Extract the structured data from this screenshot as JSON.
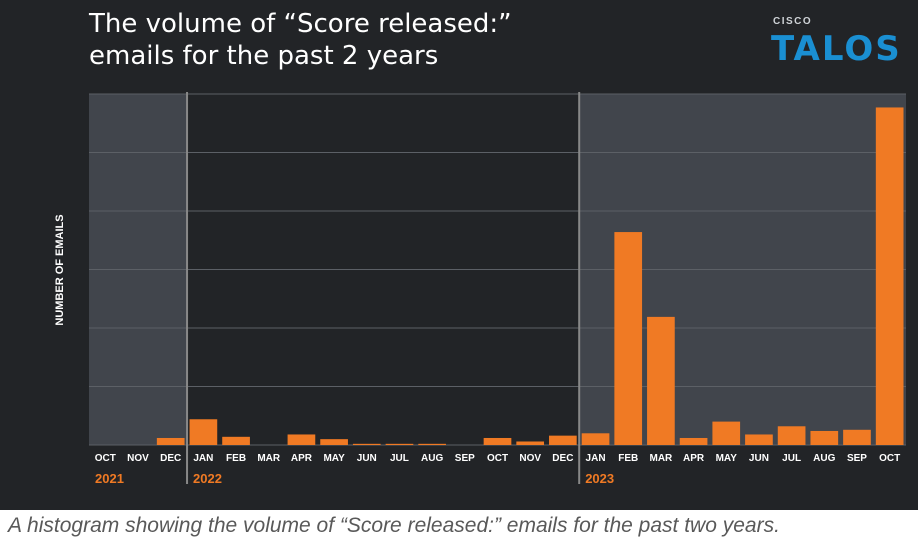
{
  "title": {
    "line1": "The volume of “Score released:”",
    "line2": "emails for the past 2 years"
  },
  "brand": {
    "company": "CISCO",
    "product": "TALOS"
  },
  "caption": "A histogram showing the volume of “Score released:” emails for the past two years.",
  "colors": {
    "background": "#222427",
    "shaded_region": "#41454c",
    "bar": "#f07a24",
    "year_label": "#f07a24",
    "grid": "#5c6066",
    "divider": "#888888"
  },
  "chart_data": {
    "type": "bar",
    "ylabel": "NUMBER OF EMAILS",
    "xlabel": "",
    "y_tick_labels_shown": false,
    "ylim": [
      0,
      6
    ],
    "grid": true,
    "categories": [
      "OCT",
      "NOV",
      "DEC",
      "JAN",
      "FEB",
      "MAR",
      "APR",
      "MAY",
      "JUN",
      "JUL",
      "AUG",
      "SEP",
      "OCT",
      "NOV",
      "DEC",
      "JAN",
      "FEB",
      "MAR",
      "APR",
      "MAY",
      "JUN",
      "JUL",
      "AUG",
      "SEP",
      "OCT"
    ],
    "year_labels": [
      {
        "label": "2021",
        "start_index": 0
      },
      {
        "label": "2022",
        "start_index": 3
      },
      {
        "label": "2023",
        "start_index": 15
      }
    ],
    "shaded_index_ranges": [
      [
        0,
        2
      ],
      [
        15,
        24
      ]
    ],
    "values": [
      0,
      0,
      0.12,
      0.44,
      0.14,
      0,
      0.18,
      0.1,
      0.02,
      0.02,
      0.02,
      0,
      0.12,
      0.06,
      0.16,
      0.2,
      3.64,
      2.19,
      0.12,
      0.4,
      0.18,
      0.32,
      0.24,
      0.26,
      5.77
    ]
  }
}
